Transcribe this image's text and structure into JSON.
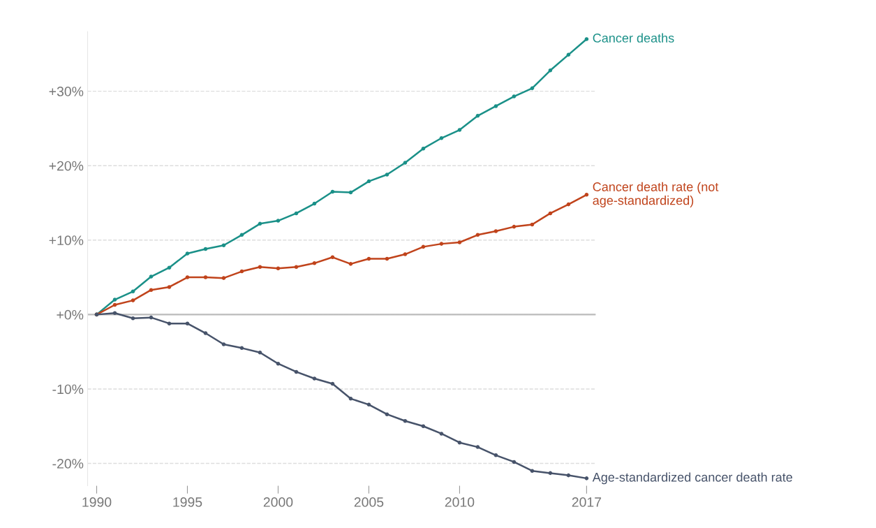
{
  "chart_data": {
    "type": "line",
    "x": [
      1990,
      1991,
      1992,
      1993,
      1994,
      1995,
      1996,
      1997,
      1998,
      1999,
      2000,
      2001,
      2002,
      2003,
      2004,
      2005,
      2006,
      2007,
      2008,
      2009,
      2010,
      2011,
      2012,
      2013,
      2014,
      2015,
      2016,
      2017
    ],
    "series": [
      {
        "name": "Cancer deaths",
        "color": "#1a9088",
        "values": [
          0,
          2.0,
          3.1,
          5.1,
          6.3,
          8.2,
          8.8,
          9.3,
          10.7,
          12.2,
          12.6,
          13.6,
          14.9,
          16.5,
          16.4,
          17.9,
          18.8,
          20.4,
          22.3,
          23.7,
          24.8,
          26.7,
          28.0,
          29.3,
          30.4,
          32.8,
          34.9,
          37.0
        ]
      },
      {
        "name": "Cancer death rate (not\nage-standardized)",
        "color": "#c0431b",
        "values": [
          0,
          1.3,
          1.9,
          3.3,
          3.7,
          5.0,
          5.0,
          4.9,
          5.8,
          6.4,
          6.2,
          6.4,
          6.9,
          7.7,
          6.8,
          7.5,
          7.5,
          8.1,
          9.1,
          9.5,
          9.7,
          10.7,
          11.2,
          11.8,
          12.1,
          13.6,
          14.8,
          16.1
        ]
      },
      {
        "name": "Age-standardized cancer death rate",
        "color": "#47536a",
        "values": [
          0,
          0.2,
          -0.5,
          -0.4,
          -1.2,
          -1.2,
          -2.5,
          -4.0,
          -4.5,
          -5.1,
          -6.6,
          -7.7,
          -8.6,
          -9.3,
          -11.3,
          -12.1,
          -13.4,
          -14.3,
          -15.0,
          -16.0,
          -17.2,
          -17.8,
          -18.9,
          -19.8,
          -21.0,
          -21.3,
          -21.6,
          -22.0
        ]
      }
    ],
    "xlim": [
      1989.5,
      2017.5
    ],
    "xticks": [
      1990,
      1995,
      2000,
      2005,
      2010,
      2017
    ],
    "ylim": [
      -23,
      38
    ],
    "yticks": [
      {
        "value": -20,
        "label": "-20%"
      },
      {
        "value": -10,
        "label": "-10%"
      },
      {
        "value": 0,
        "label": "+0%"
      },
      {
        "value": 10,
        "label": "+10%"
      },
      {
        "value": 20,
        "label": "+20%"
      },
      {
        "value": 30,
        "label": "+30%"
      }
    ],
    "ref_lines": [
      {
        "axis": "y",
        "value": 0,
        "color": "#bbbbbb",
        "line_style": "solid"
      }
    ],
    "grid": "y",
    "legend": false,
    "marker": "circle",
    "line_style": "solid"
  }
}
